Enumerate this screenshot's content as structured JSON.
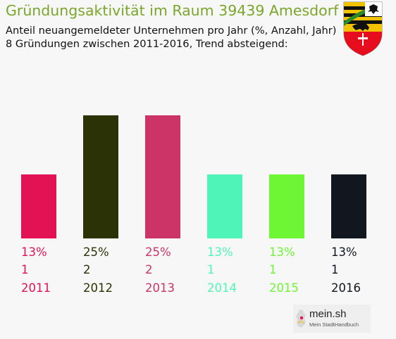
{
  "title": "Gründungsaktivität im Raum 39439 Amesdorf",
  "subtitle_line1": "Anteil neuangemeldeter Unternehmen pro Jahr (%, Anzahl, Jahr)",
  "subtitle_line2": "8 Gründungen zwischen 2011-2016, Trend absteigend:",
  "crest_icon": "coat-of-arms-saxony-anhalt",
  "logo": {
    "brand": "mein.sh",
    "tagline": "Mein StadtHandbuch"
  },
  "chart_data": {
    "type": "bar",
    "categories": [
      "2011",
      "2012",
      "2013",
      "2014",
      "2015",
      "2016"
    ],
    "values": [
      13,
      25,
      25,
      13,
      13,
      13
    ],
    "value_labels": [
      "13%",
      "25%",
      "25%",
      "13%",
      "13%",
      "13%"
    ],
    "counts": [
      "1",
      "2",
      "2",
      "1",
      "1",
      "1"
    ],
    "colors": [
      "#e31255",
      "#2b3306",
      "#cc3366",
      "#4ff5b8",
      "#6ef534",
      "#12161f"
    ],
    "ylim": [
      0,
      25
    ],
    "grid": false,
    "legend": "none"
  }
}
